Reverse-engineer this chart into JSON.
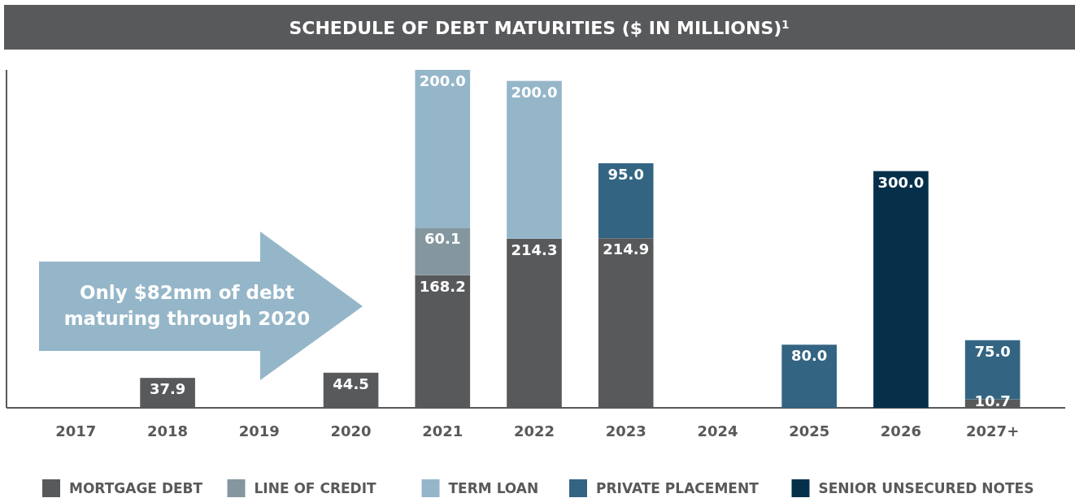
{
  "chart_data": {
    "type": "bar",
    "title": "SCHEDULE OF DEBT MATURITIES ($ IN MILLIONS)$^{1}$",
    "categories": [
      "2017",
      "2018",
      "2019",
      "2020",
      "2021",
      "2022",
      "2023",
      "2024",
      "2025",
      "2026",
      "2027+"
    ],
    "stacked": true,
    "legend": "bottom",
    "annotations": [
      "Only $82mm of debt maturing through 2020"
    ],
    "series": [
      {
        "name": "MORTGAGE DEBT",
        "color": "#58595b",
        "values": [
          null,
          37.9,
          null,
          44.5,
          168.2,
          214.3,
          214.9,
          null,
          null,
          null,
          10.7
        ],
        "value_labels": [
          null,
          "37.9",
          null,
          "44.5",
          "168.2",
          "214.3",
          "214.9",
          null,
          null,
          null,
          "10.7"
        ]
      },
      {
        "name": "LINE OF CREDIT",
        "color": "#84979f",
        "values": [
          null,
          null,
          null,
          null,
          60.1,
          null,
          null,
          null,
          null,
          null,
          null
        ],
        "value_labels": [
          null,
          null,
          null,
          null,
          "60.1",
          null,
          null,
          null,
          null,
          null,
          null
        ]
      },
      {
        "name": "TERM LOAN",
        "color": "#95b6c9",
        "values": [
          null,
          null,
          null,
          null,
          200.0,
          200.0,
          null,
          null,
          null,
          null,
          null
        ],
        "value_labels": [
          null,
          null,
          null,
          null,
          "200.0",
          "200.0",
          null,
          null,
          null,
          null,
          null
        ]
      },
      {
        "name": "PRIVATE PLACEMENT",
        "color": "#336582",
        "values": [
          null,
          null,
          null,
          null,
          null,
          null,
          95.0,
          null,
          80.0,
          null,
          75.0
        ],
        "value_labels": [
          null,
          null,
          null,
          null,
          null,
          null,
          "95.0",
          null,
          "80.0",
          null,
          "75.0"
        ]
      },
      {
        "name": "SENIOR UNSECURED NOTES",
        "color": "#06304a",
        "values": [
          null,
          null,
          null,
          null,
          null,
          null,
          null,
          null,
          null,
          300.0,
          null
        ],
        "value_labels": [
          null,
          null,
          null,
          null,
          null,
          null,
          null,
          null,
          null,
          "300.0",
          null
        ]
      }
    ]
  }
}
